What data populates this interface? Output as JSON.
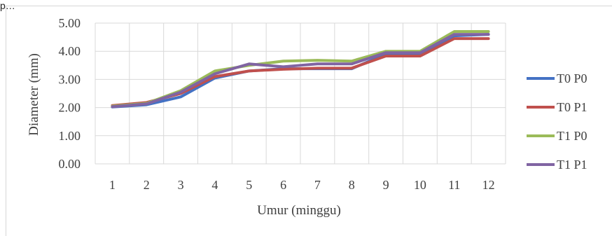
{
  "page": {
    "clipped_text": "p…"
  },
  "chart_data": {
    "type": "line",
    "title": "",
    "xlabel": "Umur (minggu)",
    "ylabel": "Diameter (mm)",
    "ylim": [
      0,
      5
    ],
    "y_ticks": [
      "0.00",
      "1.00",
      "2.00",
      "3.00",
      "4.00",
      "5.00"
    ],
    "categories": [
      "1",
      "2",
      "3",
      "4",
      "5",
      "6",
      "7",
      "8",
      "9",
      "10",
      "11",
      "12"
    ],
    "grid": true,
    "legend_position": "right",
    "series": [
      {
        "name": "T0 P0",
        "color": "#4472C4",
        "values": [
          2.02,
          2.1,
          2.38,
          3.05,
          3.3,
          3.38,
          3.38,
          3.38,
          3.9,
          3.9,
          4.55,
          4.6
        ]
      },
      {
        "name": "T0 P1",
        "color": "#C0504D",
        "values": [
          2.07,
          2.18,
          2.5,
          3.1,
          3.3,
          3.36,
          3.4,
          3.4,
          3.83,
          3.83,
          4.45,
          4.45
        ]
      },
      {
        "name": "T1 P0",
        "color": "#9BBB59",
        "values": [
          2.05,
          2.15,
          2.6,
          3.3,
          3.5,
          3.65,
          3.68,
          3.65,
          4.0,
          4.0,
          4.7,
          4.7
        ]
      },
      {
        "name": "T1 P1",
        "color": "#8064A2",
        "values": [
          2.03,
          2.13,
          2.55,
          3.2,
          3.55,
          3.45,
          3.55,
          3.55,
          3.95,
          3.95,
          4.6,
          4.6
        ]
      }
    ]
  }
}
